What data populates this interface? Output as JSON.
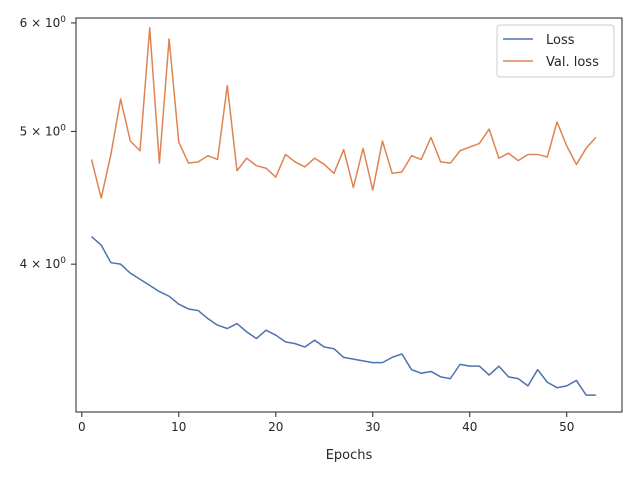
{
  "chart_data": {
    "type": "line",
    "xlabel": "Epochs",
    "ylabel": "",
    "xlim": [
      -0.6,
      55.7
    ],
    "ylim": [
      3.12,
      6.05
    ],
    "yscale": "log",
    "grid": false,
    "legend_position": "top-right",
    "x_ticks": [
      0,
      10,
      20,
      30,
      40,
      50
    ],
    "x_tick_labels": [
      "0",
      "10",
      "20",
      "30",
      "40",
      "50"
    ],
    "y_ticks": [
      {
        "value": 4,
        "mantissa": "4",
        "base": "10",
        "exp": "0"
      },
      {
        "value": 5,
        "mantissa": "5",
        "base": "10",
        "exp": "0"
      },
      {
        "value": 6,
        "mantissa": "6",
        "base": "10",
        "exp": "0"
      }
    ],
    "series": [
      {
        "name": "Loss",
        "color": "#4c72b0",
        "x": [
          1,
          2,
          3,
          4,
          5,
          6,
          7,
          8,
          9,
          10,
          11,
          12,
          13,
          14,
          15,
          16,
          17,
          18,
          19,
          20,
          21,
          22,
          23,
          24,
          25,
          26,
          27,
          28,
          29,
          30,
          31,
          32,
          33,
          34,
          35,
          36,
          37,
          38,
          39,
          40,
          41,
          42,
          43,
          44,
          45,
          46,
          47,
          48,
          49,
          50,
          51,
          52,
          53
        ],
        "values": [
          4.19,
          4.13,
          4.01,
          4.0,
          3.94,
          3.9,
          3.86,
          3.82,
          3.79,
          3.74,
          3.71,
          3.7,
          3.65,
          3.61,
          3.59,
          3.62,
          3.57,
          3.53,
          3.58,
          3.55,
          3.51,
          3.5,
          3.48,
          3.52,
          3.48,
          3.47,
          3.42,
          3.41,
          3.4,
          3.39,
          3.39,
          3.42,
          3.44,
          3.35,
          3.33,
          3.34,
          3.31,
          3.3,
          3.38,
          3.37,
          3.37,
          3.32,
          3.37,
          3.31,
          3.3,
          3.26,
          3.35,
          3.28,
          3.25,
          3.26,
          3.29,
          3.21,
          3.21
        ]
      },
      {
        "name": "Val. loss",
        "color": "#dd8452",
        "x": [
          1,
          2,
          3,
          4,
          5,
          6,
          7,
          8,
          9,
          10,
          11,
          12,
          13,
          14,
          15,
          16,
          17,
          18,
          19,
          20,
          21,
          22,
          23,
          24,
          25,
          26,
          27,
          28,
          29,
          30,
          31,
          32,
          33,
          34,
          35,
          36,
          37,
          38,
          39,
          40,
          41,
          42,
          43,
          44,
          45,
          46,
          47,
          48,
          49,
          50,
          51,
          52,
          53
        ],
        "values": [
          4.77,
          4.47,
          4.81,
          5.28,
          4.92,
          4.84,
          5.95,
          4.74,
          5.84,
          4.91,
          4.74,
          4.75,
          4.8,
          4.77,
          5.4,
          4.68,
          4.78,
          4.72,
          4.7,
          4.63,
          4.81,
          4.75,
          4.71,
          4.78,
          4.73,
          4.66,
          4.85,
          4.55,
          4.86,
          4.53,
          4.92,
          4.66,
          4.67,
          4.8,
          4.77,
          4.95,
          4.75,
          4.74,
          4.84,
          4.87,
          4.9,
          5.02,
          4.78,
          4.82,
          4.76,
          4.81,
          4.81,
          4.79,
          5.08,
          4.88,
          4.73,
          4.86,
          4.95
        ]
      }
    ]
  }
}
